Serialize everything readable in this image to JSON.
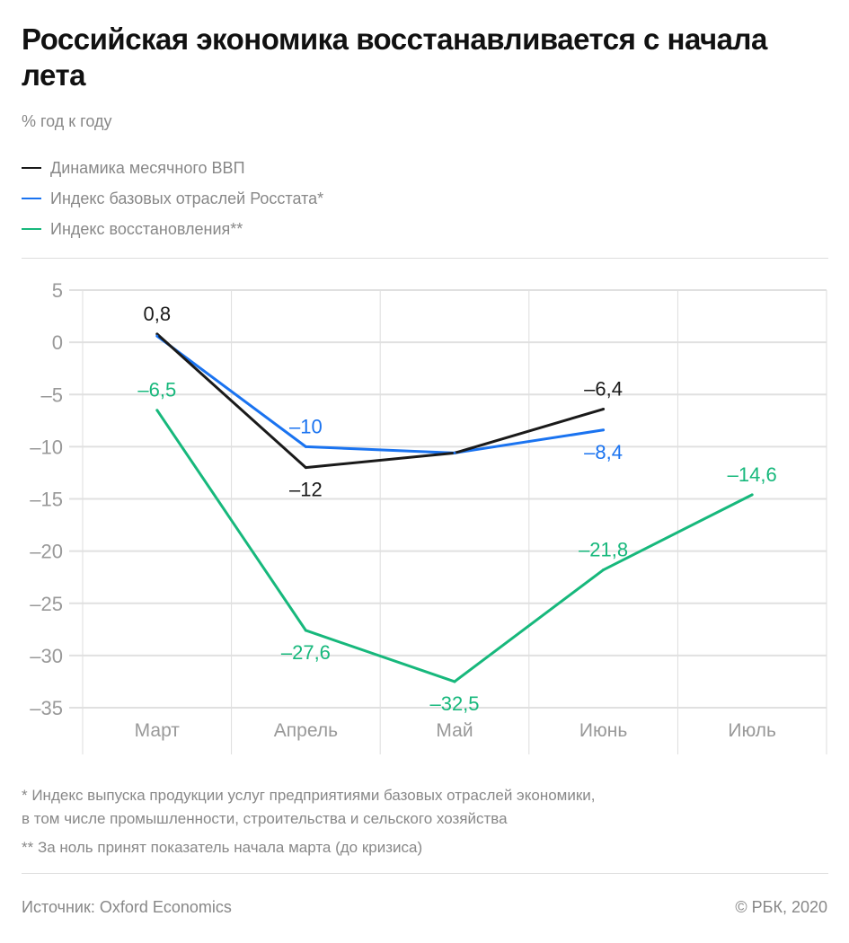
{
  "title": "Российская экономика восстанавливается с начала лета",
  "subtitle": "% год к году",
  "notes": [
    "* Индекс выпуска продукции услуг предприятиями базовых отраслей экономики,",
    "в том числе промышленности, строительства и сельского хозяйства",
    "** За ноль принят показатель начала марта (до кризиса)"
  ],
  "source": "Источник: Oxford Economics",
  "copyright": "© РБК, 2020",
  "chart_data": {
    "type": "line",
    "categories": [
      "Март",
      "Апрель",
      "Май",
      "Июнь",
      "Июль"
    ],
    "ylim": [
      -35,
      5
    ],
    "yticks": [
      5,
      0,
      -5,
      -10,
      -15,
      -20,
      -25,
      -30,
      -35
    ],
    "ytick_labels": [
      "5",
      "0",
      "–5",
      "–10",
      "–15",
      "–20",
      "–25",
      "–30",
      "–35"
    ],
    "grid": true,
    "legend": "top-left",
    "series": [
      {
        "name": "Динамика месячного ВВП",
        "color": "#1a1a1a",
        "values": [
          0.8,
          -12,
          -10.6,
          -6.4,
          null
        ],
        "labels": [
          "0,8",
          "–12",
          "",
          "–6,4",
          ""
        ],
        "label_pos": [
          "above",
          "below",
          "",
          "above",
          ""
        ]
      },
      {
        "name": "Индекс базовых отраслей Росстата*",
        "color": "#1a73f0",
        "values": [
          0.6,
          -10,
          -10.6,
          -8.4,
          null
        ],
        "labels": [
          "",
          "–10",
          "",
          "–8,4",
          ""
        ],
        "label_pos": [
          "",
          "above",
          "",
          "below",
          ""
        ]
      },
      {
        "name": "Индекс восстановления**",
        "color": "#17b87c",
        "values": [
          -6.5,
          -27.6,
          -32.5,
          -21.8,
          -14.6
        ],
        "labels": [
          "–6,5",
          "–27,6",
          "–32,5",
          "–21,8",
          "–14,6"
        ],
        "label_pos": [
          "above",
          "below",
          "below",
          "above",
          "above"
        ]
      }
    ]
  }
}
